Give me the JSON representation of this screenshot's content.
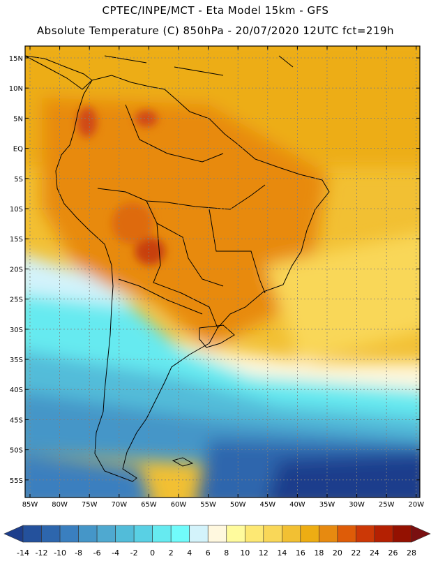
{
  "header": {
    "title_line1": "CPTEC/INPE/MCT -  Eta Model 15km - GFS",
    "title_line2": "Absolute Temperature (C) 850hPa - 20/07/2020 12UTC fct=219h"
  },
  "lat_labels": [
    "15N",
    "10N",
    "5N",
    "EQ",
    "5S",
    "10S",
    "15S",
    "20S",
    "25S",
    "30S",
    "35S",
    "40S",
    "45S",
    "50S",
    "55S"
  ],
  "lon_labels": [
    "85W",
    "80W",
    "75W",
    "70W",
    "65W",
    "60W",
    "55W",
    "50W",
    "45W",
    "40W",
    "35W",
    "30W",
    "25W",
    "20W"
  ],
  "legend": {
    "ticks": [
      "-14",
      "-12",
      "-10",
      "-8",
      "-6",
      "-4",
      "-2",
      "0",
      "2",
      "4",
      "6",
      "8",
      "10",
      "12",
      "14",
      "16",
      "18",
      "20",
      "22",
      "24",
      "26",
      "28"
    ],
    "colors": [
      "#1d3e8c",
      "#24519c",
      "#2d66ad",
      "#3a7fbf",
      "#4596c8",
      "#4fa9d0",
      "#52bcd9",
      "#59d0e4",
      "#66eaf0",
      "#71fbfb",
      "#d3f3fb",
      "#fff8df",
      "#fffb9d",
      "#fde873",
      "#f9d758",
      "#f2c033",
      "#edad13",
      "#e78a10",
      "#de5c08",
      "#cc3806",
      "#b42002",
      "#941101",
      "#7a1011"
    ]
  },
  "map_colors": {
    "warm_dark": "#d04a12",
    "warm_mid": "#e88a10",
    "warm": "#edaa18",
    "warm_light": "#f2c033",
    "yellow": "#f9d758",
    "cream": "#fff8df",
    "cyan_light": "#d3f3fb",
    "cyan": "#66eaf0",
    "cyan_mid": "#52bcd9",
    "blue_mid": "#4596c8",
    "blue": "#2d66ad",
    "blue_dark": "#1d3e8c"
  }
}
